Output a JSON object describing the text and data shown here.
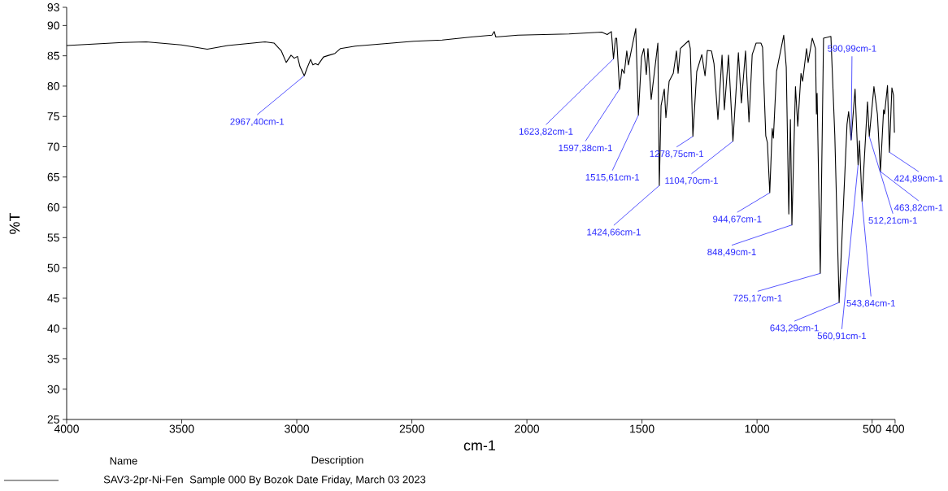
{
  "chart_data": {
    "type": "line",
    "xlabel": "cm-1",
    "ylabel": "%T",
    "legend_title": "Name",
    "legend": "bottom left",
    "xlim": [
      4000,
      400
    ],
    "xticks": [
      4000,
      3500,
      3000,
      2500,
      2000,
      1500,
      1000,
      500,
      400
    ],
    "ylim": [
      25,
      93
    ],
    "yticks": [
      25,
      30,
      35,
      40,
      45,
      50,
      55,
      60,
      65,
      70,
      75,
      80,
      85,
      90,
      93
    ],
    "series": [
      {
        "name": "SAV3-2pr-Ni-Fen",
        "color": "#000000",
        "x": [
          4000,
          3756,
          3654,
          3502,
          3389,
          3300,
          3138,
          3099,
          3067,
          3046,
          3025,
          3011,
          2997,
          2986,
          2967.4,
          2956,
          2940,
          2930,
          2919,
          2908,
          2884,
          2859,
          2834,
          2810,
          2746,
          2619,
          2492,
          2368,
          2241,
          2152,
          2142,
          2135,
          2039,
          1817,
          1675,
          1651,
          1633,
          1623.82,
          1615,
          1610,
          1597.38,
          1587,
          1577,
          1566,
          1559,
          1527,
          1515.61,
          1502,
          1492,
          1481,
          1474,
          1460,
          1431,
          1424.66,
          1417,
          1403,
          1396,
          1382,
          1364,
          1350,
          1343,
          1333,
          1297,
          1290,
          1278.75,
          1262,
          1240,
          1226,
          1216,
          1198,
          1187,
          1170,
          1152,
          1142,
          1124,
          1104.7,
          1081,
          1068,
          1050,
          1035,
          1021,
          1004,
          983,
          976,
          962,
          955,
          944.67,
          934,
          929,
          915,
          884,
          873,
          862,
          855,
          848.49,
          833,
          823,
          809,
          802,
          785,
          778,
          760,
          746,
          742,
          739,
          725.17,
          711,
          679,
          662,
          643.29,
          609,
          602,
          590.99,
          574,
          560.91,
          555,
          543.84,
          520,
          512.21,
          492,
          477,
          463.82,
          450,
          446,
          433,
          424.89,
          414,
          407,
          403
        ],
        "values": [
          86.7,
          87.2,
          87.3,
          86.8,
          86.1,
          86.7,
          87.3,
          87.1,
          85.8,
          83.9,
          85.1,
          84.6,
          84.9,
          83.2,
          81.7,
          82.9,
          84.4,
          83.5,
          83.7,
          83.5,
          84.8,
          85.1,
          85.4,
          86.2,
          86.6,
          87.0,
          87.4,
          87.6,
          88.1,
          88.4,
          89.0,
          88.1,
          88.4,
          88.6,
          88.9,
          88.5,
          89.0,
          84.5,
          87.9,
          87.9,
          79.5,
          82.8,
          82.1,
          85.8,
          83.5,
          89.5,
          75.2,
          84.8,
          86.2,
          81.9,
          86.2,
          77.8,
          87.1,
          63.6,
          76.8,
          79.5,
          74.8,
          80.8,
          82.1,
          85.8,
          82.1,
          86.2,
          87.5,
          86.2,
          71.7,
          82.4,
          85.2,
          81.7,
          85.9,
          85.8,
          83.7,
          74.5,
          85.1,
          76.1,
          85.1,
          70.9,
          85.5,
          77.2,
          85.8,
          74.1,
          85.2,
          87.1,
          87.1,
          86.4,
          71.8,
          70.7,
          62.4,
          73.0,
          71.4,
          82.5,
          88.4,
          83.1,
          58.9,
          74.5,
          57.1,
          79.9,
          73.4,
          82.1,
          80.8,
          86.2,
          83.9,
          87.9,
          86.2,
          75.4,
          78.8,
          49.1,
          87.9,
          88.2,
          71.8,
          44.3,
          73.7,
          75.8,
          71.1,
          79.5,
          67.0,
          71.0,
          61.0,
          77.4,
          71.7,
          79.9,
          75.4,
          65.9,
          76.1,
          75.4,
          80.1,
          69.1,
          79.7,
          78.5,
          72.3
        ]
      }
    ],
    "annotations": [
      {
        "text": "2967,40cm-1",
        "x": 2967.4,
        "y": 81.7
      },
      {
        "text": "1623,82cm-1",
        "x": 1623.82,
        "y": 84.5
      },
      {
        "text": "1597,38cm-1",
        "x": 1597.38,
        "y": 79.5
      },
      {
        "text": "1515,61cm-1",
        "x": 1515.61,
        "y": 75.2
      },
      {
        "text": "1424,66cm-1",
        "x": 1424.66,
        "y": 63.6
      },
      {
        "text": "1278,75cm-1",
        "x": 1278.75,
        "y": 71.7
      },
      {
        "text": "1104,70cm-1",
        "x": 1104.7,
        "y": 70.9
      },
      {
        "text": "944,67cm-1",
        "x": 944.67,
        "y": 62.4
      },
      {
        "text": "848,49cm-1",
        "x": 848.49,
        "y": 57.1
      },
      {
        "text": "725,17cm-1",
        "x": 725.17,
        "y": 49.1
      },
      {
        "text": "643,29cm-1",
        "x": 643.29,
        "y": 44.3
      },
      {
        "text": "590,99cm-1",
        "x": 590.99,
        "y": 71.1
      },
      {
        "text": "560,91cm-1",
        "x": 560.91,
        "y": 67.0
      },
      {
        "text": "543,84cm-1",
        "x": 543.84,
        "y": 61.0
      },
      {
        "text": "512,21cm-1",
        "x": 512.21,
        "y": 71.7
      },
      {
        "text": "463,82cm-1",
        "x": 463.82,
        "y": 65.9
      },
      {
        "text": "424,89cm-1",
        "x": 424.89,
        "y": 69.1
      },
      "Description",
      "Sample 000 By Bozok Date Friday, March 03 2023"
    ]
  }
}
